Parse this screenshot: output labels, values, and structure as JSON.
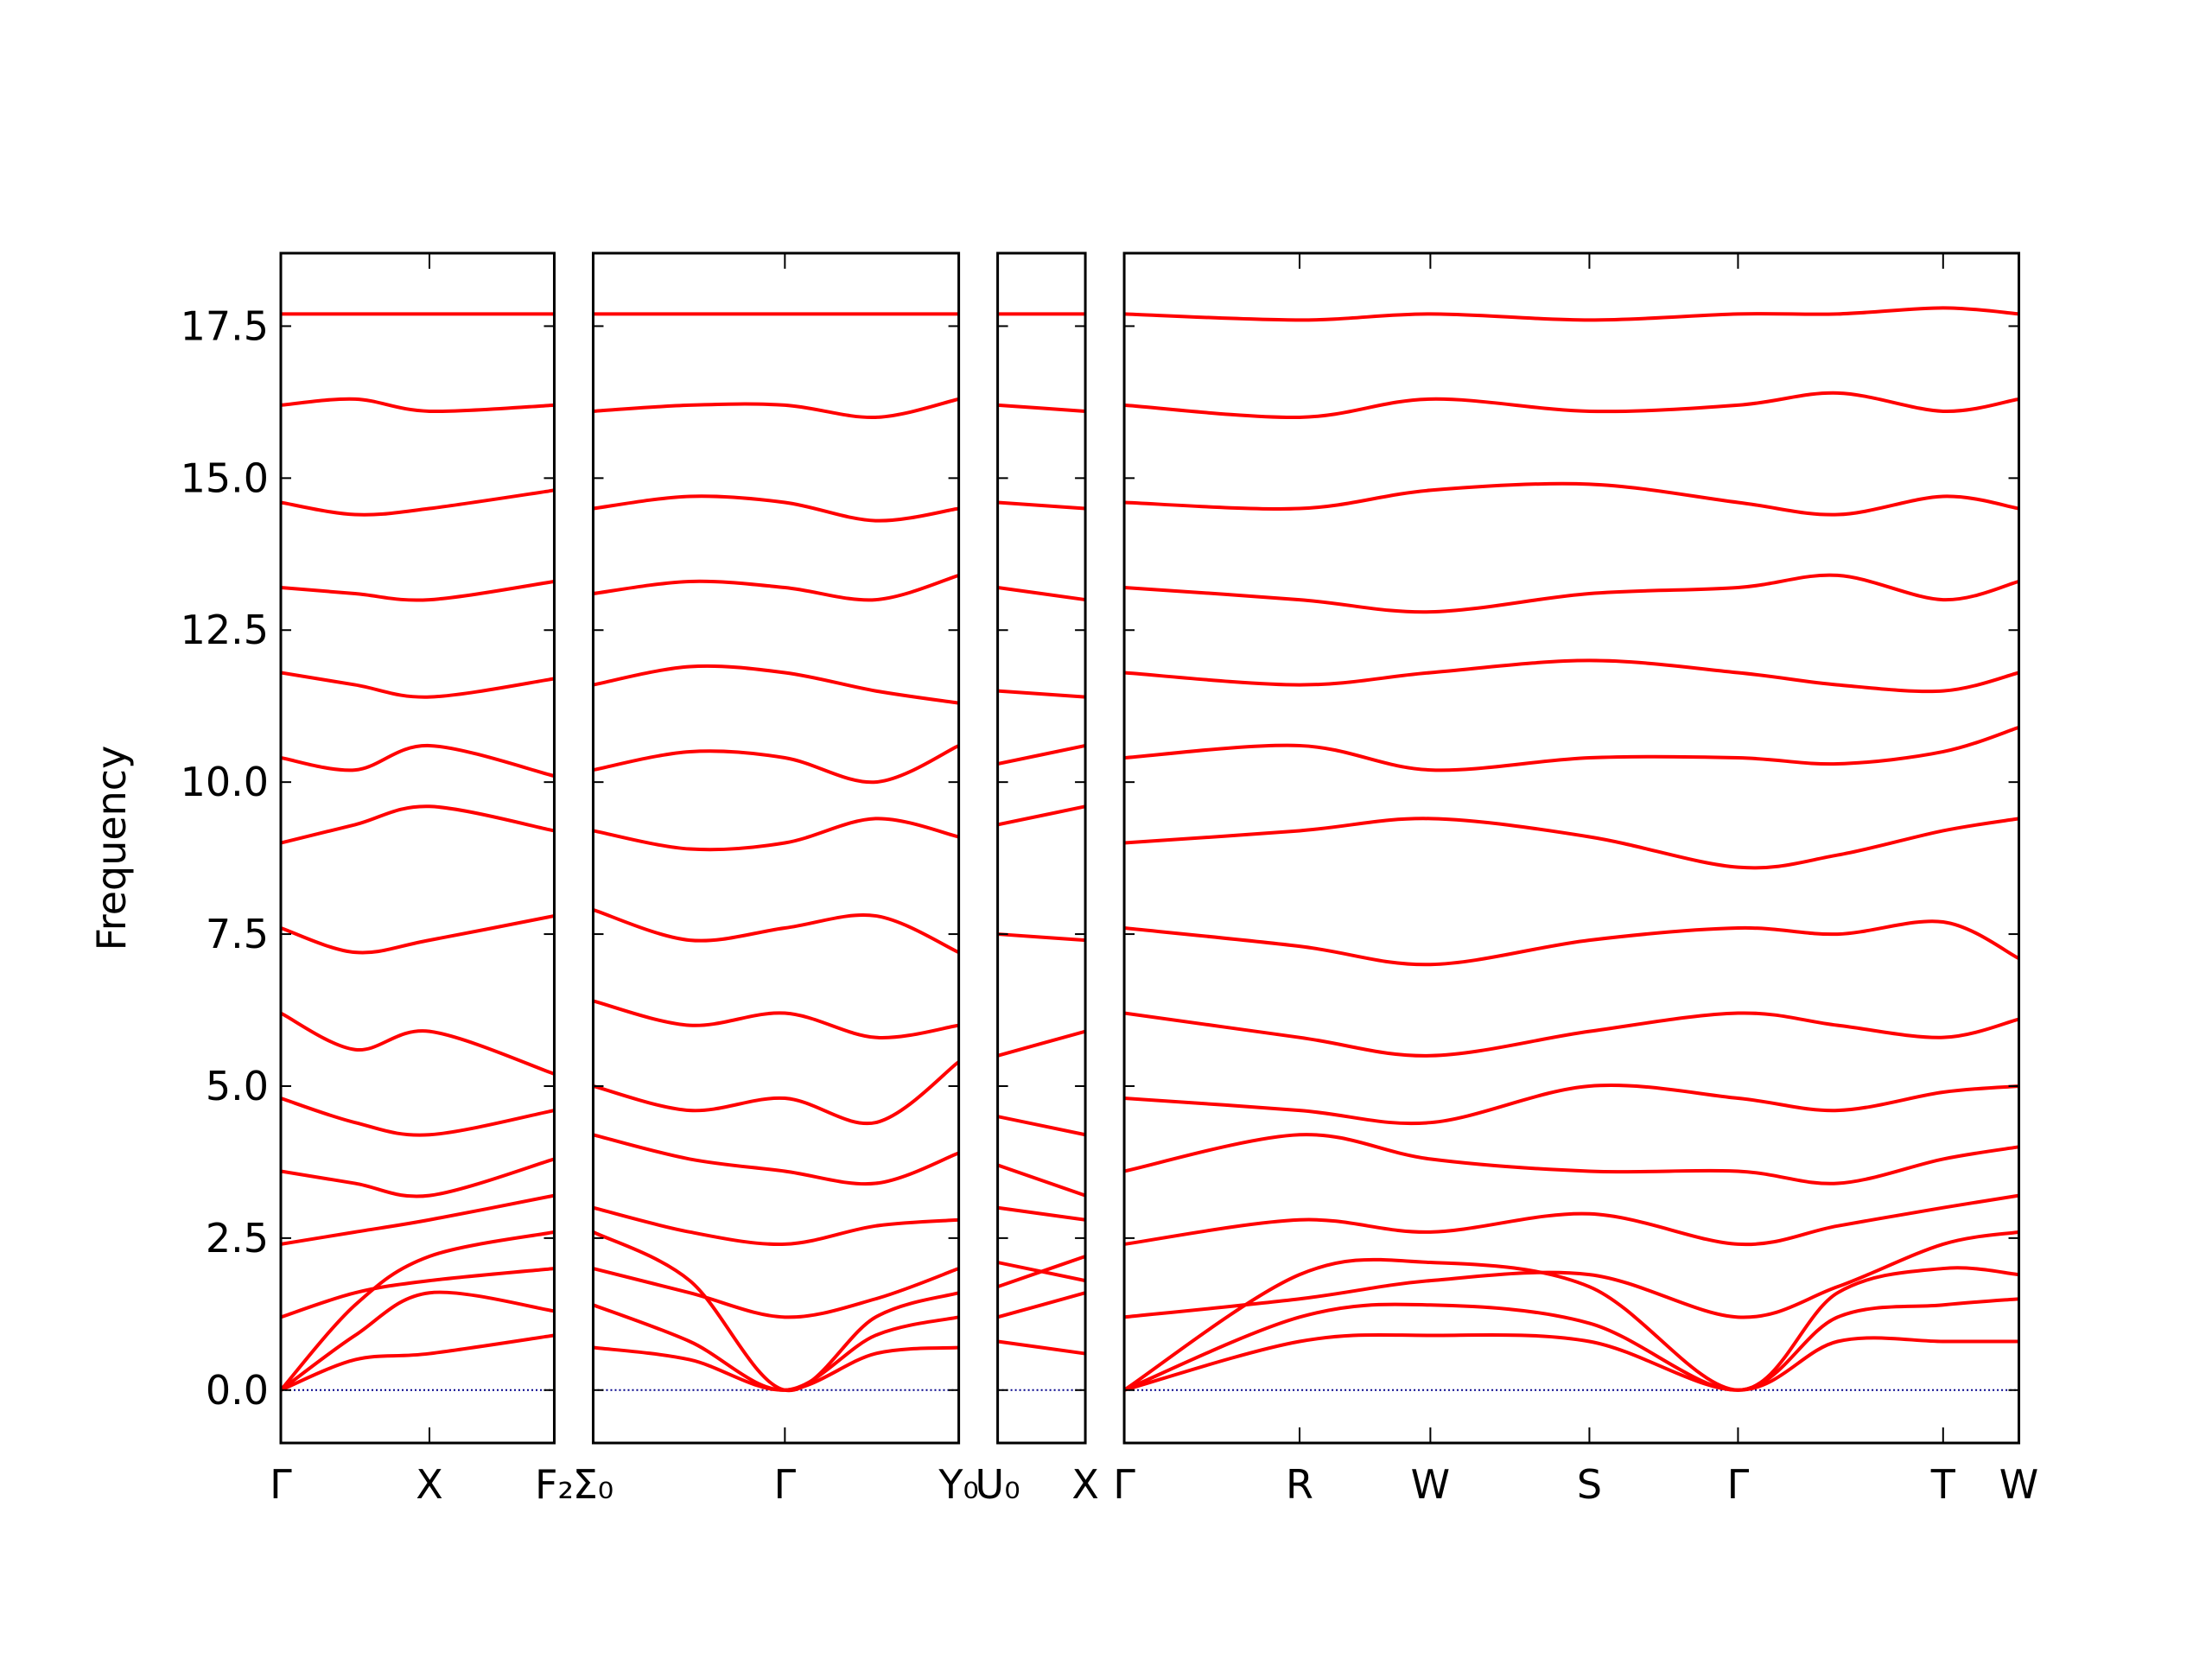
{
  "chart_data": [
    {
      "type": "line",
      "ylabel": "Frequency",
      "show_ytick_labels": true,
      "line_color": "#ff0000",
      "hline": 0,
      "hline_color": "#00008b",
      "ylim": [
        -0.87,
        18.7
      ],
      "yticks": [
        {
          "value": 0,
          "label": "0.0"
        },
        2.5,
        {
          "value": 5,
          "label": "5.0"
        },
        7.5,
        {
          "value": 10,
          "label": "10.0"
        },
        12.5,
        {
          "value": 15,
          "label": "15.0"
        },
        17.5
      ],
      "xlim": [
        0,
        1.84
      ],
      "xticks": [
        {
          "value": 0,
          "label": "Γ"
        },
        {
          "value": 1,
          "label": "X"
        },
        {
          "value": 1.84,
          "label": "F₂"
        }
      ],
      "x": [
        0,
        0.5,
        1,
        1.84
      ],
      "series": [
        {
          "values": [
            0,
            0.5,
            0.6,
            0.9
          ]
        },
        {
          "values": [
            0,
            0.9,
            1.6,
            1.3
          ]
        },
        {
          "values": [
            0,
            1.4,
            2.2,
            2.6
          ]
        },
        {
          "values": [
            1.2,
            1.6,
            1.8,
            2.0
          ]
        },
        {
          "values": [
            2.4,
            2.6,
            2.8,
            3.2
          ]
        },
        {
          "values": [
            3.6,
            3.4,
            3.2,
            3.8
          ]
        },
        {
          "values": [
            4.8,
            4.4,
            4.2,
            4.6
          ]
        },
        {
          "values": [
            6.2,
            5.6,
            5.9,
            5.2
          ]
        },
        {
          "values": [
            7.6,
            7.2,
            7.4,
            7.8
          ]
        },
        {
          "values": [
            9.0,
            9.3,
            9.6,
            9.2
          ]
        },
        {
          "values": [
            10.4,
            10.2,
            10.6,
            10.1
          ]
        },
        {
          "values": [
            11.8,
            11.6,
            11.4,
            11.7
          ]
        },
        {
          "values": [
            13.2,
            13.1,
            13.0,
            13.3
          ]
        },
        {
          "values": [
            14.6,
            14.4,
            14.5,
            14.8
          ]
        },
        {
          "values": [
            16.2,
            16.3,
            16.1,
            16.2
          ]
        },
        {
          "values": [
            17.7,
            17.7,
            17.7,
            17.7
          ]
        }
      ]
    },
    {
      "type": "line",
      "show_ytick_labels": false,
      "line_color": "#ff0000",
      "hline": 0,
      "hline_color": "#00008b",
      "ylim": [
        -0.87,
        18.7
      ],
      "yticks": [
        0,
        2.5,
        5,
        7.5,
        10,
        12.5,
        15,
        17.5
      ],
      "xlim": [
        0,
        2.46
      ],
      "xticks": [
        {
          "value": 0,
          "label": "Σ₀"
        },
        {
          "value": 1.29,
          "label": "Γ"
        },
        {
          "value": 2.46,
          "label": "Y₀"
        }
      ],
      "x": [
        0,
        0.65,
        1.29,
        1.9,
        2.46
      ],
      "series": [
        {
          "values": [
            0.7,
            0.5,
            0,
            0.6,
            0.7
          ]
        },
        {
          "values": [
            1.4,
            0.8,
            0,
            0.9,
            1.2
          ]
        },
        {
          "values": [
            2.6,
            1.8,
            0,
            1.2,
            1.6
          ]
        },
        {
          "values": [
            2.0,
            1.6,
            1.2,
            1.5,
            2.0
          ]
        },
        {
          "values": [
            3.0,
            2.6,
            2.4,
            2.7,
            2.8
          ]
        },
        {
          "values": [
            4.2,
            3.8,
            3.6,
            3.4,
            3.9
          ]
        },
        {
          "values": [
            5.0,
            4.6,
            4.8,
            4.4,
            5.4
          ]
        },
        {
          "values": [
            6.4,
            6.0,
            6.2,
            5.8,
            6.0
          ]
        },
        {
          "values": [
            7.9,
            7.4,
            7.6,
            7.8,
            7.2
          ]
        },
        {
          "values": [
            9.2,
            8.9,
            9.0,
            9.4,
            9.1
          ]
        },
        {
          "values": [
            10.2,
            10.5,
            10.4,
            10.0,
            10.6
          ]
        },
        {
          "values": [
            11.6,
            11.9,
            11.8,
            11.5,
            11.3
          ]
        },
        {
          "values": [
            13.1,
            13.3,
            13.2,
            13.0,
            13.4
          ]
        },
        {
          "values": [
            14.5,
            14.7,
            14.6,
            14.3,
            14.5
          ]
        },
        {
          "values": [
            16.1,
            16.2,
            16.2,
            16.0,
            16.3
          ]
        },
        {
          "values": [
            17.7,
            17.7,
            17.7,
            17.7,
            17.7
          ]
        }
      ]
    },
    {
      "type": "line",
      "show_ytick_labels": false,
      "line_color": "#ff0000",
      "hline": 0,
      "hline_color": "#00008b",
      "ylim": [
        -0.87,
        18.7
      ],
      "yticks": [
        0,
        2.5,
        5,
        7.5,
        10,
        12.5,
        15,
        17.5
      ],
      "xlim": [
        0,
        0.59
      ],
      "xticks": [
        {
          "value": 0,
          "label": "U₀"
        },
        {
          "value": 0.59,
          "label": "X"
        }
      ],
      "x": [
        0,
        0.59
      ],
      "series": [
        {
          "values": [
            0.8,
            0.6
          ]
        },
        {
          "values": [
            1.2,
            1.6
          ]
        },
        {
          "values": [
            1.7,
            2.2
          ]
        },
        {
          "values": [
            2.1,
            1.8
          ]
        },
        {
          "values": [
            3.0,
            2.8
          ]
        },
        {
          "values": [
            3.7,
            3.2
          ]
        },
        {
          "values": [
            4.5,
            4.2
          ]
        },
        {
          "values": [
            5.5,
            5.9
          ]
        },
        {
          "values": [
            7.5,
            7.4
          ]
        },
        {
          "values": [
            9.3,
            9.6
          ]
        },
        {
          "values": [
            10.3,
            10.6
          ]
        },
        {
          "values": [
            11.5,
            11.4
          ]
        },
        {
          "values": [
            13.2,
            13.0
          ]
        },
        {
          "values": [
            14.6,
            14.5
          ]
        },
        {
          "values": [
            16.2,
            16.1
          ]
        },
        {
          "values": [
            17.7,
            17.7
          ]
        }
      ]
    },
    {
      "type": "line",
      "show_ytick_labels": false,
      "line_color": "#ff0000",
      "hline": 0,
      "hline_color": "#00008b",
      "ylim": [
        -0.87,
        18.7
      ],
      "yticks": [
        0,
        2.5,
        5,
        7.5,
        10,
        12.5,
        15,
        17.5
      ],
      "xlim": [
        0,
        6.02
      ],
      "xticks": [
        {
          "value": 0,
          "label": "Γ"
        },
        {
          "value": 1.18,
          "label": "R"
        },
        {
          "value": 2.06,
          "label": "W"
        },
        {
          "value": 3.13,
          "label": "S"
        },
        {
          "value": 4.13,
          "label": "Γ"
        },
        {
          "value": 5.51,
          "label": "T"
        },
        {
          "value": 6.02,
          "label": "W"
        }
      ],
      "x": [
        0,
        1.18,
        2.06,
        3.13,
        4.13,
        4.8,
        5.51,
        6.02
      ],
      "series": [
        {
          "values": [
            0,
            0.8,
            0.9,
            0.8,
            0,
            0.8,
            0.8,
            0.8
          ]
        },
        {
          "values": [
            0,
            1.2,
            1.4,
            1.1,
            0,
            1.2,
            1.4,
            1.5
          ]
        },
        {
          "values": [
            0,
            1.9,
            2.1,
            1.7,
            0,
            1.6,
            2.0,
            1.9
          ]
        },
        {
          "values": [
            1.2,
            1.5,
            1.8,
            1.9,
            1.2,
            1.7,
            2.4,
            2.6
          ]
        },
        {
          "values": [
            2.4,
            2.8,
            2.6,
            2.9,
            2.4,
            2.7,
            3.0,
            3.2
          ]
        },
        {
          "values": [
            3.6,
            4.2,
            3.8,
            3.6,
            3.6,
            3.4,
            3.8,
            4.0
          ]
        },
        {
          "values": [
            4.8,
            4.6,
            4.4,
            5.0,
            4.8,
            4.6,
            4.9,
            5.0
          ]
        },
        {
          "values": [
            6.2,
            5.8,
            5.5,
            5.9,
            6.2,
            6.0,
            5.8,
            6.1
          ]
        },
        {
          "values": [
            7.6,
            7.3,
            7.0,
            7.4,
            7.6,
            7.5,
            7.7,
            7.1
          ]
        },
        {
          "values": [
            9.0,
            9.2,
            9.4,
            9.1,
            8.6,
            8.8,
            9.2,
            9.4
          ]
        },
        {
          "values": [
            10.4,
            10.6,
            10.2,
            10.4,
            10.4,
            10.3,
            10.5,
            10.9
          ]
        },
        {
          "values": [
            11.8,
            11.6,
            11.8,
            12.0,
            11.8,
            11.6,
            11.5,
            11.8
          ]
        },
        {
          "values": [
            13.2,
            13.0,
            12.8,
            13.1,
            13.2,
            13.4,
            13.0,
            13.3
          ]
        },
        {
          "values": [
            14.6,
            14.5,
            14.8,
            14.9,
            14.6,
            14.4,
            14.7,
            14.5
          ]
        },
        {
          "values": [
            16.2,
            16.0,
            16.3,
            16.1,
            16.2,
            16.4,
            16.1,
            16.3
          ]
        },
        {
          "values": [
            17.7,
            17.6,
            17.7,
            17.6,
            17.7,
            17.7,
            17.8,
            17.7
          ]
        }
      ]
    }
  ]
}
